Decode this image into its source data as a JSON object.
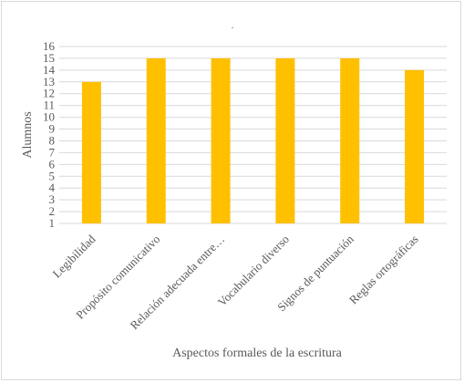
{
  "chart_data": {
    "type": "bar",
    "title": ".",
    "xlabel": "Aspectos formales de la escritura",
    "ylabel": "Alumnos",
    "categories": [
      "Legibilidad",
      "Propósito comunicativo",
      "Relación adecuada entre…",
      "Vocabulario diverso",
      "Signos de puntuación",
      "Reglas ortográficas"
    ],
    "values": [
      13,
      15,
      15,
      15,
      15,
      14
    ],
    "ylim": [
      1,
      16
    ],
    "yticks": [
      1,
      2,
      3,
      4,
      5,
      6,
      7,
      8,
      9,
      10,
      11,
      12,
      13,
      14,
      15,
      16
    ],
    "grid": true,
    "legend": "none",
    "colors": {
      "bar": "#ffc000",
      "grid": "#d9d9d9",
      "text": "#595959"
    }
  }
}
